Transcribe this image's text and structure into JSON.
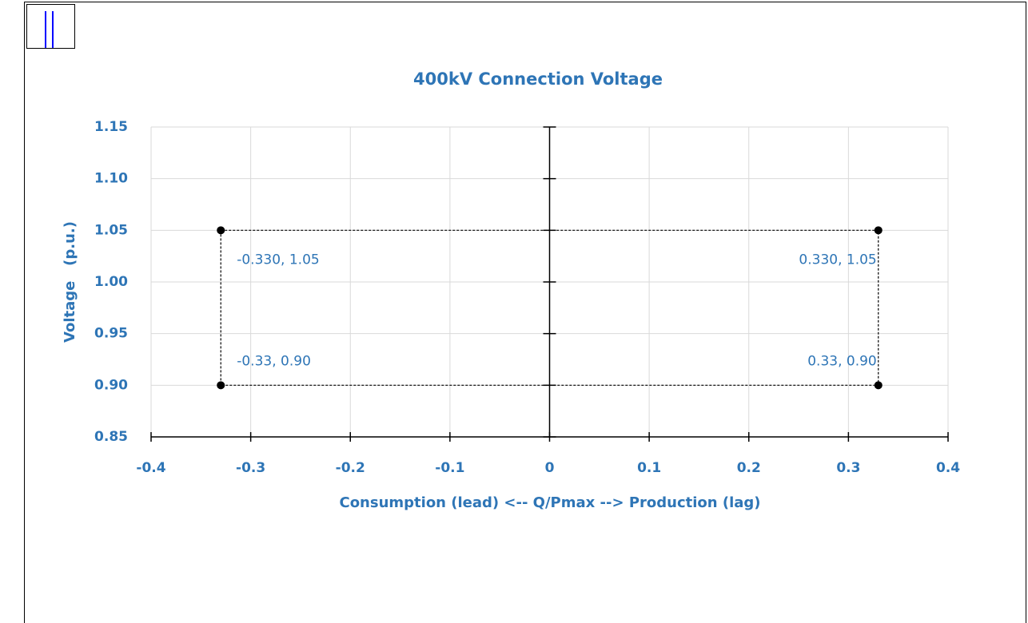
{
  "chart_data": {
    "type": "scatter",
    "title": "400kV Connection Voltage",
    "x_label": "Consumption (lead) <-- Q/Pmax --> Production (lag)",
    "y_label": "Voltage   (p.u.)",
    "xlim": [
      -0.4,
      0.4
    ],
    "xticks": [
      -0.4,
      -0.3,
      -0.2,
      -0.1,
      0,
      0.1,
      0.2,
      0.3,
      0.4
    ],
    "ylim": [
      0.85,
      1.15
    ],
    "yticks": [
      0.85,
      {
        "value": 0.9,
        "label": "0.90"
      },
      0.95,
      {
        "value": 1.0,
        "label": "1.00"
      },
      1.05,
      {
        "value": 1.1,
        "label": "1.10"
      },
      1.15
    ],
    "grid": true,
    "series": [
      {
        "color": "#000000",
        "x": [
          -0.33,
          0.33,
          0.33,
          -0.33
        ],
        "values": [
          1.05,
          1.05,
          0.9,
          0.9
        ],
        "value_labels": [
          "-0.330, 1.05",
          "0.330, 1.05",
          "0.33, 0.90",
          "-0.33, 0.90"
        ]
      }
    ]
  }
}
